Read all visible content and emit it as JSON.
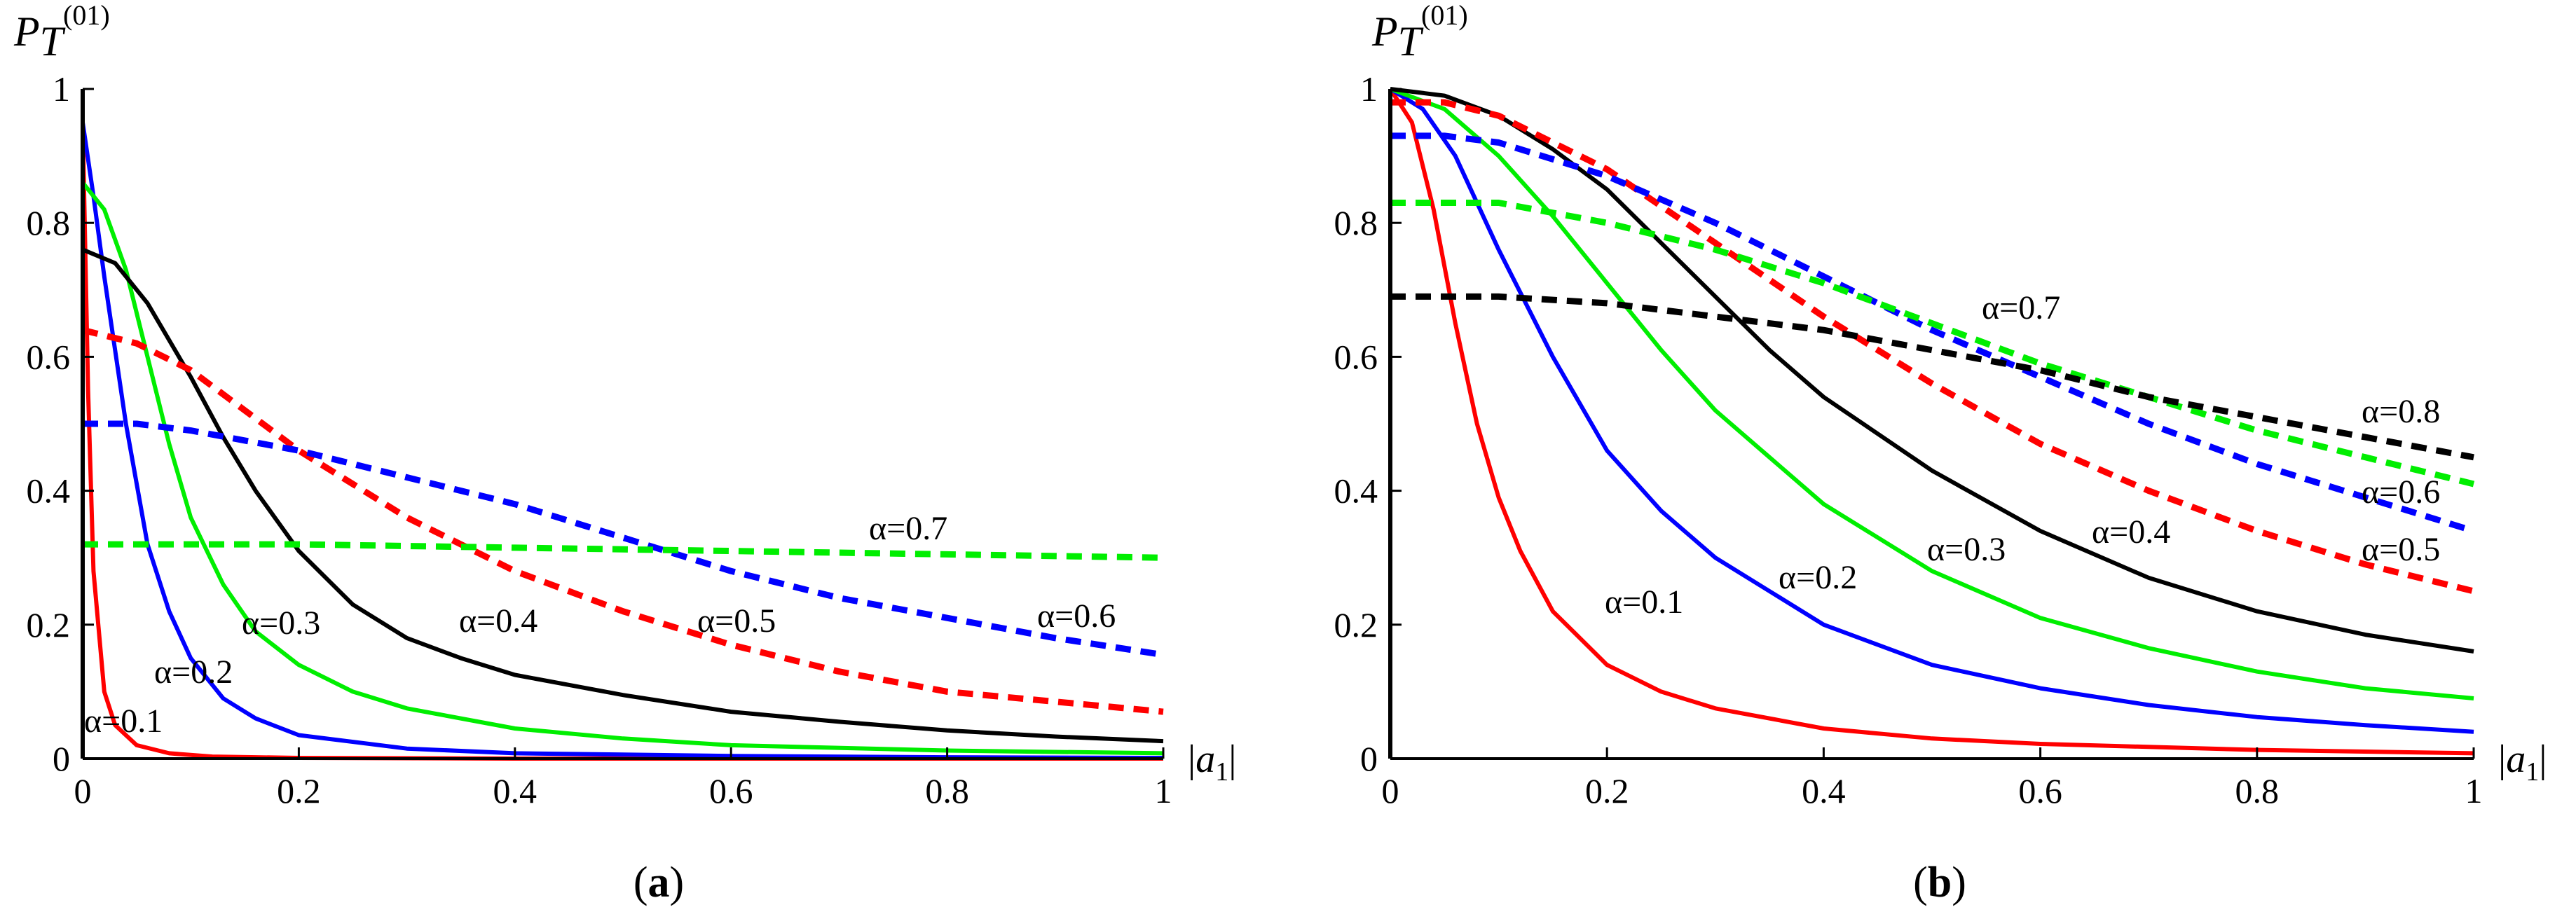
{
  "chart_data": [
    {
      "type": "line",
      "panel": "a",
      "panel_label": {
        "open": "(",
        "letter": "a",
        "close": ")"
      },
      "ylabel": {
        "main": "P",
        "sub": "T",
        "sup": "(01)"
      },
      "xlabel": {
        "bar_left": "|",
        "var": "a",
        "sub": "1",
        "bar_right": "|"
      },
      "xlim": [
        0,
        1
      ],
      "ylim": [
        0,
        1
      ],
      "x_ticks": [
        0,
        0.2,
        0.4,
        0.6,
        0.8,
        1
      ],
      "x_tick_labels": [
        "0",
        "0.2",
        "0.4",
        "0.6",
        "0.8",
        "1"
      ],
      "y_ticks": [
        0,
        0.2,
        0.4,
        0.6,
        0.8,
        1
      ],
      "y_tick_labels": [
        "0",
        "0.2",
        "0.4",
        "0.6",
        "0.8",
        "1"
      ],
      "grid": false,
      "series": [
        {
          "name": "α=0.1",
          "label": "α=0.1",
          "alpha": 0.1,
          "color": "#ff0000",
          "style": "solid",
          "x": [
            0,
            0.005,
            0.01,
            0.02,
            0.03,
            0.05,
            0.08,
            0.12,
            0.2,
            0.4,
            0.7,
            1.0
          ],
          "y": [
            0.95,
            0.55,
            0.28,
            0.1,
            0.05,
            0.02,
            0.008,
            0.003,
            0.001,
            0.0,
            0.0,
            0.0
          ]
        },
        {
          "name": "α=0.2",
          "label": "α=0.2",
          "alpha": 0.2,
          "color": "#0000ff",
          "style": "solid",
          "x": [
            0,
            0.01,
            0.02,
            0.04,
            0.06,
            0.08,
            0.1,
            0.13,
            0.16,
            0.2,
            0.3,
            0.4,
            0.6,
            0.8,
            1.0
          ],
          "y": [
            0.95,
            0.84,
            0.72,
            0.5,
            0.32,
            0.22,
            0.15,
            0.09,
            0.06,
            0.035,
            0.015,
            0.008,
            0.004,
            0.002,
            0.001
          ]
        },
        {
          "name": "α=0.3",
          "label": "α=0.3",
          "alpha": 0.3,
          "color": "#00ee00",
          "style": "solid",
          "x": [
            0,
            0.02,
            0.04,
            0.06,
            0.08,
            0.1,
            0.13,
            0.16,
            0.2,
            0.25,
            0.3,
            0.4,
            0.5,
            0.6,
            0.8,
            1.0
          ],
          "y": [
            0.86,
            0.82,
            0.73,
            0.6,
            0.47,
            0.36,
            0.26,
            0.19,
            0.14,
            0.1,
            0.075,
            0.045,
            0.03,
            0.02,
            0.012,
            0.008
          ]
        },
        {
          "name": "α=0.4",
          "label": "α=0.4",
          "alpha": 0.4,
          "color": "#000000",
          "style": "solid",
          "x": [
            0,
            0.03,
            0.06,
            0.1,
            0.13,
            0.16,
            0.2,
            0.25,
            0.3,
            0.35,
            0.4,
            0.5,
            0.6,
            0.7,
            0.8,
            0.9,
            1.0
          ],
          "y": [
            0.76,
            0.74,
            0.68,
            0.57,
            0.48,
            0.4,
            0.31,
            0.23,
            0.18,
            0.15,
            0.125,
            0.095,
            0.07,
            0.055,
            0.042,
            0.033,
            0.026
          ]
        },
        {
          "name": "α=0.5",
          "label": "α=0.5",
          "alpha": 0.5,
          "color": "#ff0000",
          "style": "dashed",
          "x": [
            0,
            0.05,
            0.1,
            0.15,
            0.2,
            0.25,
            0.3,
            0.35,
            0.4,
            0.5,
            0.6,
            0.7,
            0.8,
            0.9,
            1.0
          ],
          "y": [
            0.64,
            0.62,
            0.58,
            0.52,
            0.46,
            0.41,
            0.36,
            0.32,
            0.28,
            0.22,
            0.17,
            0.13,
            0.1,
            0.085,
            0.07
          ]
        },
        {
          "name": "α=0.6",
          "label": "α=0.6",
          "alpha": 0.6,
          "color": "#0000ff",
          "style": "dashed",
          "x": [
            0,
            0.05,
            0.1,
            0.2,
            0.3,
            0.4,
            0.5,
            0.6,
            0.7,
            0.8,
            0.9,
            1.0
          ],
          "y": [
            0.5,
            0.5,
            0.49,
            0.46,
            0.42,
            0.38,
            0.33,
            0.28,
            0.24,
            0.21,
            0.18,
            0.155
          ]
        },
        {
          "name": "α=0.7",
          "label": "α=0.7",
          "alpha": 0.7,
          "color": "#00ee00",
          "style": "dashed",
          "x": [
            0,
            0.2,
            0.4,
            0.6,
            0.8,
            1.0
          ],
          "y": [
            0.32,
            0.32,
            0.315,
            0.31,
            0.305,
            0.3
          ]
        }
      ],
      "annotations": [
        "α=0.1",
        "α=0.2",
        "α=0.3",
        "α=0.4",
        "α=0.5",
        "α=0.6",
        "α=0.7"
      ]
    },
    {
      "type": "line",
      "panel": "b",
      "panel_label": {
        "open": "(",
        "letter": "b",
        "close": ")"
      },
      "ylabel": {
        "main": "P",
        "sub": "T",
        "sup": "(01)"
      },
      "xlabel": {
        "bar_left": "|",
        "var": "a",
        "sub": "1",
        "bar_right": "|"
      },
      "xlim": [
        0,
        1
      ],
      "ylim": [
        0,
        1
      ],
      "x_ticks": [
        0,
        0.2,
        0.4,
        0.6,
        0.8,
        1
      ],
      "x_tick_labels": [
        "0",
        "0.2",
        "0.4",
        "0.6",
        "0.8",
        "1"
      ],
      "y_ticks": [
        0,
        0.2,
        0.4,
        0.6,
        0.8,
        1
      ],
      "y_tick_labels": [
        "0",
        "0.2",
        "0.4",
        "0.6",
        "0.8",
        "1"
      ],
      "grid": false,
      "series": [
        {
          "name": "α=0.1",
          "label": "α=0.1",
          "alpha": 0.1,
          "color": "#ff0000",
          "style": "solid",
          "x": [
            0,
            0.02,
            0.04,
            0.06,
            0.08,
            0.1,
            0.12,
            0.15,
            0.2,
            0.25,
            0.3,
            0.4,
            0.5,
            0.6,
            0.8,
            1.0
          ],
          "y": [
            1.0,
            0.95,
            0.82,
            0.65,
            0.5,
            0.39,
            0.31,
            0.22,
            0.14,
            0.1,
            0.075,
            0.045,
            0.03,
            0.022,
            0.013,
            0.008
          ]
        },
        {
          "name": "α=0.2",
          "label": "α=0.2",
          "alpha": 0.2,
          "color": "#0000ff",
          "style": "solid",
          "x": [
            0,
            0.03,
            0.06,
            0.1,
            0.15,
            0.2,
            0.25,
            0.3,
            0.35,
            0.4,
            0.5,
            0.6,
            0.7,
            0.8,
            0.9,
            1.0
          ],
          "y": [
            1.0,
            0.97,
            0.9,
            0.76,
            0.6,
            0.46,
            0.37,
            0.3,
            0.25,
            0.2,
            0.14,
            0.105,
            0.08,
            0.062,
            0.05,
            0.04
          ]
        },
        {
          "name": "α=0.3",
          "label": "α=0.3",
          "alpha": 0.3,
          "color": "#00ee00",
          "style": "solid",
          "x": [
            0,
            0.05,
            0.1,
            0.15,
            0.2,
            0.25,
            0.3,
            0.35,
            0.4,
            0.5,
            0.6,
            0.7,
            0.8,
            0.9,
            1.0
          ],
          "y": [
            1.0,
            0.97,
            0.9,
            0.81,
            0.71,
            0.61,
            0.52,
            0.45,
            0.38,
            0.28,
            0.21,
            0.165,
            0.13,
            0.105,
            0.09
          ]
        },
        {
          "name": "α=0.4",
          "label": "α=0.4",
          "alpha": 0.4,
          "color": "#000000",
          "style": "solid",
          "x": [
            0,
            0.05,
            0.1,
            0.15,
            0.2,
            0.25,
            0.3,
            0.35,
            0.4,
            0.5,
            0.6,
            0.7,
            0.8,
            0.9,
            1.0
          ],
          "y": [
            1.0,
            0.99,
            0.96,
            0.91,
            0.85,
            0.77,
            0.69,
            0.61,
            0.54,
            0.43,
            0.34,
            0.27,
            0.22,
            0.185,
            0.16
          ]
        },
        {
          "name": "α=0.5",
          "label": "α=0.5",
          "alpha": 0.5,
          "color": "#ff0000",
          "style": "dashed",
          "x": [
            0,
            0.05,
            0.1,
            0.2,
            0.3,
            0.4,
            0.5,
            0.6,
            0.7,
            0.8,
            0.9,
            1.0
          ],
          "y": [
            0.98,
            0.98,
            0.96,
            0.88,
            0.77,
            0.66,
            0.56,
            0.47,
            0.4,
            0.34,
            0.29,
            0.25
          ]
        },
        {
          "name": "α=0.6",
          "label": "α=0.6",
          "alpha": 0.6,
          "color": "#0000ff",
          "style": "dashed",
          "x": [
            0,
            0.05,
            0.1,
            0.2,
            0.3,
            0.4,
            0.5,
            0.6,
            0.7,
            0.8,
            0.9,
            1.0
          ],
          "y": [
            0.93,
            0.93,
            0.92,
            0.87,
            0.8,
            0.72,
            0.64,
            0.57,
            0.5,
            0.44,
            0.39,
            0.34
          ]
        },
        {
          "name": "α=0.7",
          "label": "α=0.7",
          "alpha": 0.7,
          "color": "#00ee00",
          "style": "dashed",
          "x": [
            0,
            0.05,
            0.1,
            0.2,
            0.3,
            0.4,
            0.5,
            0.6,
            0.7,
            0.8,
            0.9,
            1.0
          ],
          "y": [
            0.83,
            0.83,
            0.83,
            0.8,
            0.76,
            0.71,
            0.65,
            0.59,
            0.54,
            0.49,
            0.45,
            0.41
          ]
        },
        {
          "name": "α=0.8",
          "label": "α=0.8",
          "alpha": 0.8,
          "color": "#000000",
          "style": "dashed",
          "x": [
            0,
            0.1,
            0.2,
            0.3,
            0.4,
            0.5,
            0.6,
            0.7,
            0.8,
            0.9,
            1.0
          ],
          "y": [
            0.69,
            0.69,
            0.68,
            0.66,
            0.64,
            0.61,
            0.58,
            0.54,
            0.51,
            0.48,
            0.45
          ]
        }
      ],
      "annotations": [
        "α=0.1",
        "α=0.2",
        "α=0.3",
        "α=0.4",
        "α=0.5",
        "α=0.6",
        "α=0.7",
        "α=0.8"
      ]
    }
  ]
}
